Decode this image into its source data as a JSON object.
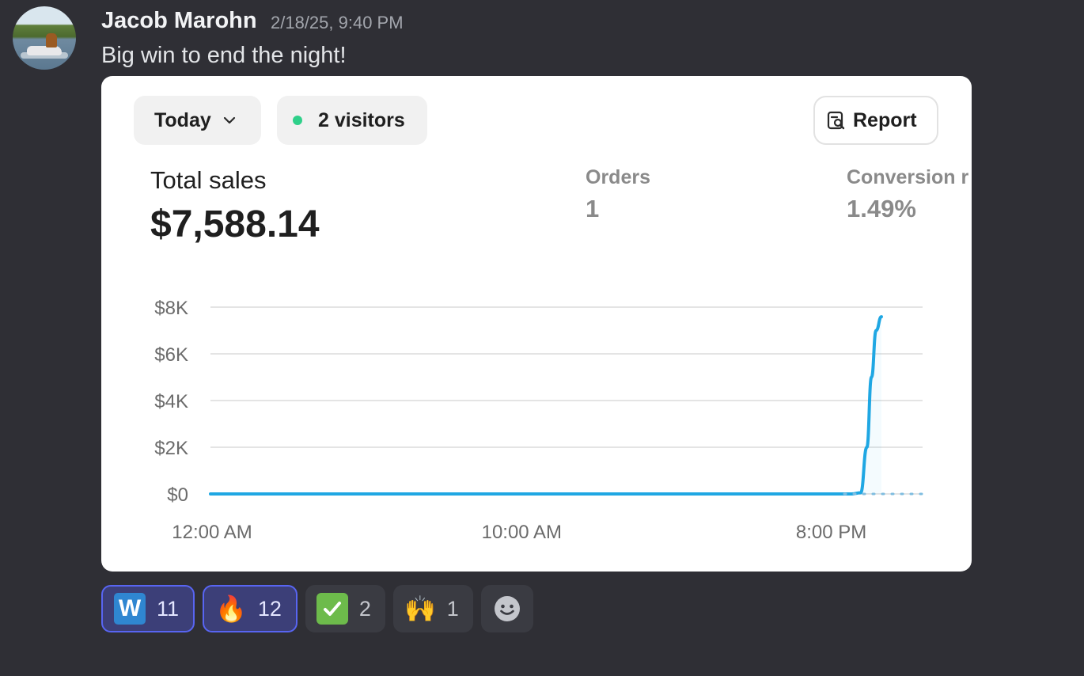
{
  "message": {
    "author": "Jacob Marohn",
    "timestamp": "2/18/25, 9:40 PM",
    "text": "Big win to end the night!",
    "avatar_icon": "jetski-rider-avatar"
  },
  "card": {
    "date_filter": "Today",
    "visitors": "2 visitors",
    "visitor_dot_color": "#2fd08a",
    "report_label": "Report",
    "metrics": {
      "total_sales_label": "Total sales",
      "total_sales_value": "$7,588.14",
      "orders_label": "Orders",
      "orders_value": "1",
      "conversion_label": "Conversion r",
      "conversion_value": "1.49%"
    }
  },
  "chart_data": {
    "type": "line",
    "xlabel": "",
    "ylabel": "",
    "y_ticks": [
      "$8K",
      "$6K",
      "$4K",
      "$2K",
      "$0"
    ],
    "y_tick_values": [
      8000,
      6000,
      4000,
      2000,
      0
    ],
    "ylim": [
      0,
      8000
    ],
    "x_ticks": [
      "12:00 AM",
      "10:00 AM",
      "8:00 PM"
    ],
    "x_tick_hours": [
      0,
      10,
      20
    ],
    "xlim_hours": [
      0,
      23
    ],
    "grid": true,
    "color": "#1fa7e3",
    "series": [
      {
        "x_hours": [
          0,
          20.7,
          21.0,
          21.2,
          21.35,
          21.5,
          21.67
        ],
        "values": [
          0,
          0,
          50,
          2000,
          5000,
          7000,
          7588.14
        ]
      }
    ],
    "projection_dotted_hours": [
      21.67,
      23
    ]
  },
  "reactions": [
    {
      "icon": "w-letter-emoji",
      "glyph": "W",
      "count": "11",
      "active": true
    },
    {
      "icon": "fire-emoji",
      "glyph": "🔥",
      "count": "12",
      "active": true
    },
    {
      "icon": "check-mark-emoji",
      "glyph": "",
      "count": "2",
      "active": false
    },
    {
      "icon": "raised-hands-emoji",
      "glyph": "🙌",
      "count": "1",
      "active": false
    }
  ],
  "add_reaction_icon": "smiley-add-reaction-icon"
}
